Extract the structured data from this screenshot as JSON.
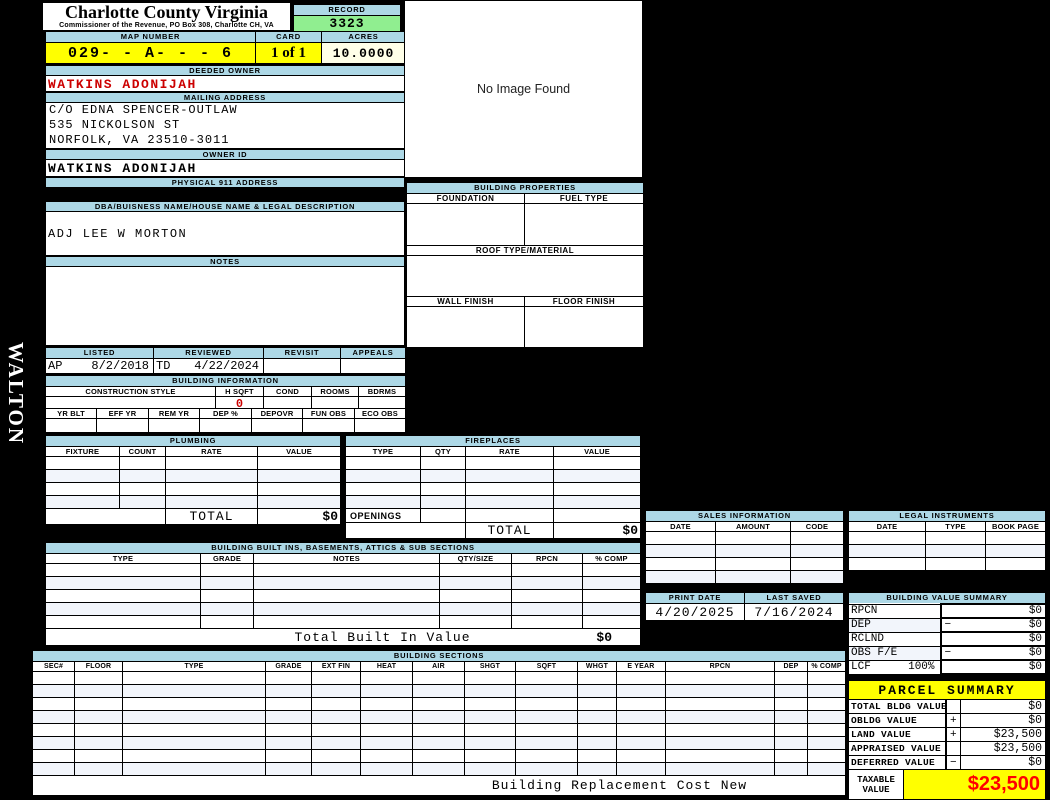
{
  "watermark": "WALTON",
  "county_header": {
    "title": "Charlotte County Virginia",
    "subtitle": "Commissioner of the Revenue, PO Box 308, Charlotte CH, VA",
    "record_label": "RECORD",
    "record_value": "3323",
    "map_number_label": "MAP NUMBER",
    "map_number_value": "029- - A- - - 6",
    "card_label": "CARD",
    "card_value": "1 of 1",
    "acres_label": "ACRES",
    "acres_value": "10.0000"
  },
  "owner": {
    "deeded_owner_label": "DEEDED OWNER",
    "deeded_owner_value": "WATKINS ADONIJAH",
    "mailing_address_label": "MAILING ADDRESS",
    "mailing_address_lines": [
      "C/O EDNA SPENCER-OUTLAW",
      "535 NICKOLSON ST",
      "NORFOLK, VA 23510-3011"
    ],
    "owner_id_label": "OWNER ID",
    "owner_id_value": "WATKINS ADONIJAH",
    "physical_911_label": "PHYSICAL 911 ADDRESS",
    "physical_911_value": "",
    "dba_label": "DBA/BUISNESS NAME/HOUSE NAME & LEGAL DESCRIPTION",
    "dba_value": "ADJ LEE W MORTON",
    "notes_label": "NOTES",
    "notes_value": ""
  },
  "visits": {
    "listed_label": "LISTED",
    "reviewed_label": "REVIEWED",
    "revisit_label": "REVISIT",
    "appeals_label": "APPEALS",
    "listed_code": "AP",
    "listed_date": "8/2/2018",
    "reviewed_code": "TD",
    "reviewed_date": "4/22/2024",
    "revisit_value": "",
    "appeals_value": ""
  },
  "building_information": {
    "title": "BUILDING INFORMATION",
    "style_headers": [
      "CONSTRUCTION STYLE",
      "H SQFT",
      "COND",
      "ROOMS",
      "BDRMS"
    ],
    "construction_style_value": "",
    "h_sqft_value": "0",
    "cond_value": "",
    "rooms_value": "",
    "bdrms_value": "",
    "year_headers": [
      "YR BLT",
      "EFF YR",
      "REM YR",
      "DEP %",
      "DEPOVR",
      "FUN OBS",
      "ECO OBS"
    ]
  },
  "plumbing": {
    "title": "PLUMBING",
    "headers": [
      "FIXTURE",
      "COUNT",
      "RATE",
      "VALUE"
    ],
    "total_label": "TOTAL",
    "total_value": "$0"
  },
  "fireplaces": {
    "title": "FIREPLACES",
    "headers": [
      "TYPE",
      "QTY",
      "RATE",
      "VALUE"
    ],
    "openings_label": "OPENINGS",
    "total_label": "TOTAL",
    "total_value": "$0"
  },
  "built_ins": {
    "title": "BUILDING BUILT INS, BASEMENTS, ATTICS & SUB SECTIONS",
    "headers": [
      "TYPE",
      "GRADE",
      "NOTES",
      "QTY/SIZE",
      "RPCN",
      "% COMP"
    ],
    "total_label": "Total Built In Value",
    "total_value": "$0"
  },
  "building_sections": {
    "title": "BUILDING SECTIONS",
    "headers": [
      "SEC#",
      "FLOOR",
      "TYPE",
      "GRADE",
      "EXT FIN",
      "HEAT",
      "AIR",
      "SHGT",
      "SQFT",
      "WHGT",
      "E YEAR",
      "RPCN",
      "DEP",
      "% COMP"
    ],
    "footer_label": "Building Replacement Cost New"
  },
  "image_panel": {
    "placeholder_text": "No Image Found"
  },
  "building_properties": {
    "title": "BUILDING PROPERTIES",
    "foundation_label": "FOUNDATION",
    "fuel_type_label": "FUEL TYPE",
    "roof_label": "ROOF TYPE/MATERIAL",
    "wall_finish_label": "WALL FINISH",
    "floor_finish_label": "FLOOR FINISH"
  },
  "sales_information": {
    "title": "SALES INFORMATION",
    "headers": [
      "DATE",
      "AMOUNT",
      "CODE"
    ]
  },
  "legal_instruments": {
    "title": "LEGAL INSTRUMENTS",
    "headers": [
      "DATE",
      "TYPE",
      "BOOK PAGE"
    ]
  },
  "print_info": {
    "print_date_label": "PRINT DATE",
    "print_date_value": "4/20/2025",
    "last_saved_label": "LAST SAVED",
    "last_saved_value": "7/16/2024"
  },
  "building_value_summary": {
    "title": "BUILDING VALUE SUMMARY",
    "rows": [
      {
        "label": "RPCN",
        "qualifier": "",
        "op": "",
        "value": "$0"
      },
      {
        "label": "DEP",
        "qualifier": "",
        "op": "−",
        "value": "$0"
      },
      {
        "label": "RCLND",
        "qualifier": "",
        "op": "",
        "value": "$0"
      },
      {
        "label": "OBS F/E",
        "qualifier": "",
        "op": "−",
        "value": "$0"
      },
      {
        "label": "LCF",
        "qualifier": "100%",
        "op": "",
        "value": "$0"
      }
    ]
  },
  "parcel_summary": {
    "title": "PARCEL SUMMARY",
    "rows": [
      {
        "label": "TOTAL BLDG VALUE",
        "op": "",
        "value": "$0"
      },
      {
        "label": "OBLDG VALUE",
        "op": "+",
        "value": "$0"
      },
      {
        "label": "LAND VALUE",
        "op": "+",
        "value": "$23,500"
      },
      {
        "label": "APPRAISED VALUE",
        "op": "",
        "value": "$23,500"
      },
      {
        "label": "DEFERRED VALUE",
        "op": "−",
        "value": "$0"
      }
    ],
    "taxable_label": "TAXABLE VALUE",
    "taxable_value": "$23,500"
  },
  "colors": {
    "section_bar": "#ADD8E6",
    "record_green": "#90EE90",
    "highlight_yellow": "#FFFF00",
    "acres_cream": "#FFFFE8",
    "taxable_red": "#FF0000",
    "owner_red": "#CC0000",
    "alt_row": "#F2F5FB"
  }
}
